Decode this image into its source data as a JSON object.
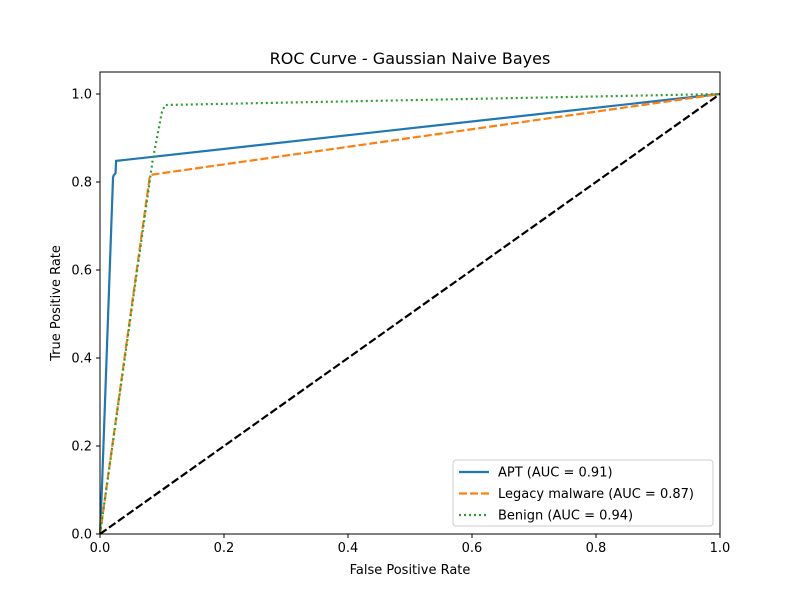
{
  "chart_data": {
    "type": "line",
    "title": "ROC Curve - Gaussian Naive Bayes",
    "xlabel": "False Positive Rate",
    "ylabel": "True Positive Rate",
    "xlim": [
      0.0,
      1.0
    ],
    "ylim": [
      0.0,
      1.05
    ],
    "xticks": [
      0.0,
      0.2,
      0.4,
      0.6,
      0.8,
      1.0
    ],
    "yticks": [
      0.0,
      0.2,
      0.4,
      0.6,
      0.8,
      1.0
    ],
    "xtick_labels": [
      "0.0",
      "0.2",
      "0.4",
      "0.6",
      "0.8",
      "1.0"
    ],
    "ytick_labels": [
      "0.0",
      "0.2",
      "0.4",
      "0.6",
      "0.8",
      "1.0"
    ],
    "grid": false,
    "legend_position": "lower-right",
    "series": [
      {
        "name": "APT (AUC = 0.91)",
        "color": "#1f77b4",
        "style": "solid",
        "x": [
          0.0,
          0.003,
          0.021,
          0.022,
          0.025,
          0.026,
          1.0
        ],
        "y": [
          0.0,
          0.1,
          0.81,
          0.815,
          0.82,
          0.848,
          1.0
        ]
      },
      {
        "name": "Legacy malware (AUC = 0.87)",
        "color": "#ff7f0e",
        "style": "dashed",
        "x": [
          0.0,
          0.08,
          0.085,
          1.0
        ],
        "y": [
          0.0,
          0.81,
          0.817,
          1.0
        ]
      },
      {
        "name": "Benign (AUC = 0.94)",
        "color": "#2ca02c",
        "style": "dotted",
        "x": [
          0.0,
          0.085,
          0.1,
          0.105,
          1.0
        ],
        "y": [
          0.0,
          0.85,
          0.96,
          0.975,
          1.0
        ]
      },
      {
        "name": "",
        "color": "#000000",
        "style": "dashed",
        "x": [
          0.0,
          1.0
        ],
        "y": [
          0.0,
          1.0
        ]
      }
    ]
  }
}
